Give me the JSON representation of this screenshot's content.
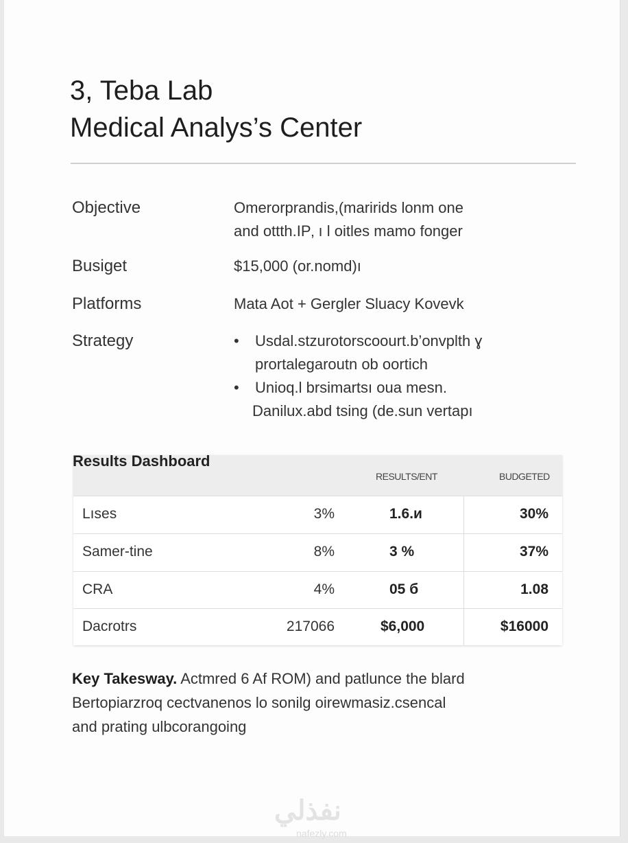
{
  "header": {
    "title_line1": "3, Teba Lab",
    "title_line2": "Medical Analys’s Center"
  },
  "details": {
    "objective_label": "Objective",
    "objective_line1": "Omerorprandis,(maririds lonm one",
    "objective_line2": "and ottth.IP‚ ı l oitles mamo fonger",
    "budget_label": "Busiget",
    "budget_value": "$15,000 (or.nomd)ı",
    "platforms_label": "Platforms",
    "platforms_value": "Mata Aot + Gergler Sluacy  Kovevk",
    "strategy_label": "Strategy",
    "strategy_bullets": [
      {
        "line1": "Usdal.stzurotorscoourt.b’onvplth ɣ",
        "line2": "prortalegaroutn ob oortich"
      },
      {
        "line1": "Unioq.l brsimartsı oua mesn.",
        "line2": "Danilux.abd tsing (de.sun vertapı"
      }
    ]
  },
  "results": {
    "title": "Results Dashboard",
    "columns": [
      "",
      "",
      "RESULTS/ENT",
      "BUDGETED"
    ],
    "rows": [
      [
        "Lıses",
        "3%",
        "1.6.и",
        "30%"
      ],
      [
        "Samer-tine",
        "8%",
        "3 %",
        "37%"
      ],
      [
        "CRA",
        "4%",
        "05 б",
        "1.08"
      ],
      [
        "Dacrotrs",
        "217066",
        "$6,000",
        "$16000"
      ]
    ]
  },
  "takeaway": {
    "label": "Key Takesway.",
    "line1": "Actmred 6 Af ROM) and patlunce the blard",
    "line2": "Bertopiarzroq cectvanenos lo sonilg oirewmasiz.csencal",
    "line3": "and prating ulbcorangoing"
  },
  "watermark": {
    "arabic": "نفذلي",
    "latin": "nafezly.com"
  }
}
